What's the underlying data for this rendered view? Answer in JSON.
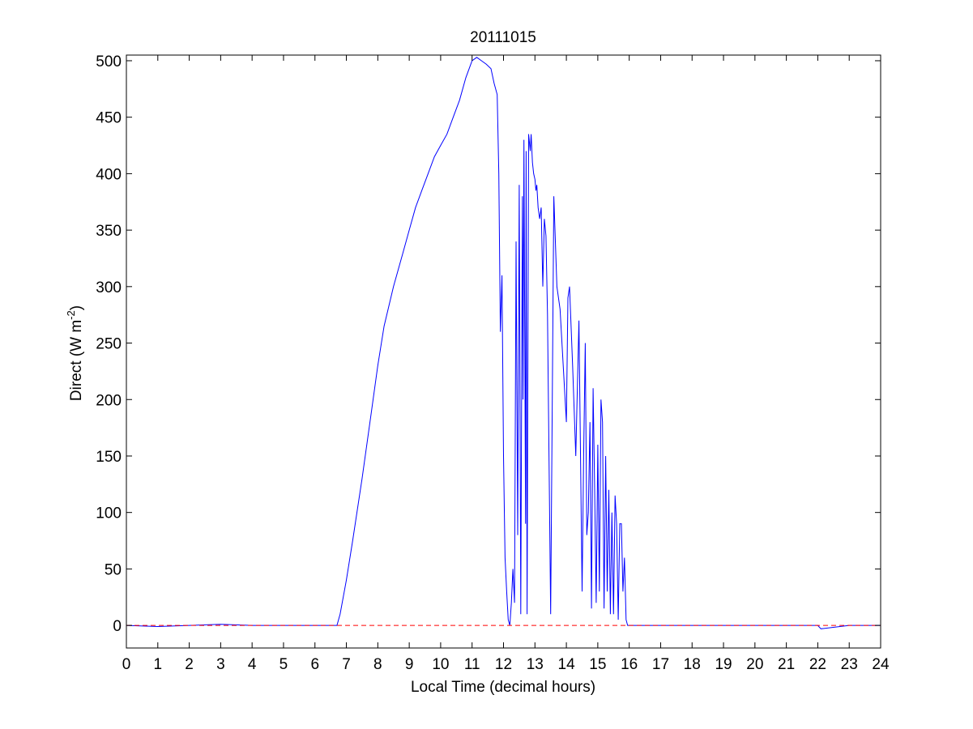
{
  "chart_data": {
    "type": "line",
    "title": "20111015",
    "xlabel": "Local Time (decimal hours)",
    "ylabel": {
      "prefix": "Direct (W m",
      "superscript": "-2",
      "suffix": ")"
    },
    "xlim": [
      0,
      24
    ],
    "ylim": [
      -20,
      505
    ],
    "xticks": [
      0,
      1,
      2,
      3,
      4,
      5,
      6,
      7,
      8,
      9,
      10,
      11,
      12,
      13,
      14,
      15,
      16,
      17,
      18,
      19,
      20,
      21,
      22,
      23,
      24
    ],
    "yticks": [
      0,
      50,
      100,
      150,
      200,
      250,
      300,
      350,
      400,
      450,
      500
    ],
    "grid": false,
    "series": [
      {
        "color": "#0000ff",
        "style": "solid",
        "x": [
          0,
          1,
          2,
          3,
          4,
          5,
          6,
          6.7,
          6.8,
          7.0,
          7.2,
          7.5,
          7.8,
          8.0,
          8.2,
          8.5,
          8.8,
          9.0,
          9.2,
          9.4,
          9.6,
          9.8,
          10.0,
          10.2,
          10.4,
          10.6,
          10.8,
          11.0,
          11.15,
          11.3,
          11.45,
          11.6,
          11.7,
          11.8,
          11.85,
          11.9,
          11.95,
          12.0,
          12.05,
          12.1,
          12.15,
          12.2,
          12.25,
          12.3,
          12.35,
          12.4,
          12.45,
          12.5,
          12.55,
          12.6,
          12.62,
          12.65,
          12.7,
          12.72,
          12.75,
          12.8,
          12.85,
          12.88,
          12.92,
          12.96,
          13.0,
          13.03,
          13.06,
          13.1,
          13.15,
          13.2,
          13.25,
          13.3,
          13.35,
          13.4,
          13.5,
          13.6,
          13.7,
          13.8,
          13.9,
          14.0,
          14.05,
          14.1,
          14.2,
          14.3,
          14.4,
          14.5,
          14.55,
          14.6,
          14.65,
          14.7,
          14.75,
          14.8,
          14.85,
          14.9,
          14.95,
          15.0,
          15.05,
          15.1,
          15.15,
          15.2,
          15.25,
          15.3,
          15.35,
          15.4,
          15.45,
          15.5,
          15.55,
          15.6,
          15.65,
          15.7,
          15.75,
          15.8,
          15.85,
          15.9,
          15.95,
          16.0,
          16.05,
          16.1,
          16.15,
          16.2,
          16.25,
          16.3,
          16.35,
          16.4,
          16.45,
          16.5,
          16.55,
          16.6,
          16.65,
          16.7,
          16.8,
          16.9,
          17.0,
          18,
          19,
          20,
          21,
          21.9,
          22.0,
          22.1,
          23,
          24
        ],
        "y": [
          0,
          -1,
          0,
          1,
          0,
          0,
          0,
          0,
          10,
          40,
          75,
          130,
          190,
          230,
          265,
          300,
          330,
          350,
          370,
          385,
          400,
          415,
          425,
          435,
          450,
          465,
          485,
          500,
          503,
          500,
          497,
          493,
          480,
          470,
          400,
          260,
          310,
          150,
          60,
          30,
          5,
          0,
          20,
          50,
          20,
          340,
          80,
          390,
          10,
          380,
          200,
          430,
          90,
          420,
          10,
          435,
          420,
          435,
          410,
          400,
          395,
          385,
          390,
          370,
          360,
          370,
          300,
          360,
          345,
          275,
          10,
          380,
          300,
          280,
          230,
          180,
          290,
          300,
          230,
          150,
          270,
          30,
          150,
          250,
          80,
          100,
          180,
          15,
          210,
          120,
          20,
          160,
          30,
          200,
          180,
          15,
          150,
          30,
          120,
          10,
          100,
          10,
          115,
          90,
          5,
          90,
          90,
          30,
          60,
          5,
          0,
          0,
          0,
          0,
          0,
          0,
          0,
          0,
          0,
          0,
          0,
          0,
          0,
          0,
          0,
          0,
          0,
          0,
          0,
          0,
          0,
          0,
          0,
          0,
          0,
          -3,
          0,
          0
        ]
      },
      {
        "color": "#ff0000",
        "style": "dashed",
        "x": [
          0,
          24
        ],
        "y": [
          0,
          0
        ]
      }
    ]
  }
}
